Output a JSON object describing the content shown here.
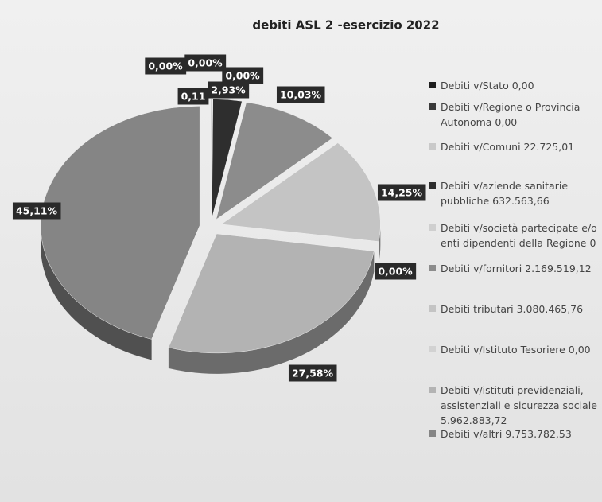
{
  "chart_data": {
    "type": "pie",
    "title": "debiti ASL 2 -esercizio 2022",
    "categories": [
      "Debiti v/Stato 0,00",
      "Debiti v/Regione o Provincia Autonoma 0,00",
      "Debiti v/Comuni 22.725,01",
      "Debiti v/aziende sanitarie pubbliche 632.563,66",
      "Debiti v/società partecipate e/o enti dipendenti della Regione 0",
      "Debiti v/fornitori 2.169.519,12",
      "Debiti tributari 3.080.465,76",
      "Debiti v/Istituto Tesoriere 0,00",
      "Debiti v/istituti previdenziali, assistenziali e sicurezza sociale 5.962.883,72",
      "Debiti v/altri 9.753.782,53"
    ],
    "values": [
      0,
      0,
      0.11,
      2.93,
      0,
      10.03,
      14.25,
      0,
      27.58,
      45.11
    ],
    "value_labels": [
      "0,00%",
      "0,00%",
      "0,11",
      "2,93%",
      "0,00%",
      "10,03%",
      "14,25%",
      "0,00%",
      "27,58%",
      "45,11%"
    ],
    "colors": [
      "#1e1e1e",
      "#3a3a3a",
      "#c9c9c9",
      "#2e2e2e",
      "#cfcfcf",
      "#8c8c8c",
      "#c4c4c4",
      "#d2d2d2",
      "#b3b3b3",
      "#858585"
    ],
    "legend": "right"
  }
}
